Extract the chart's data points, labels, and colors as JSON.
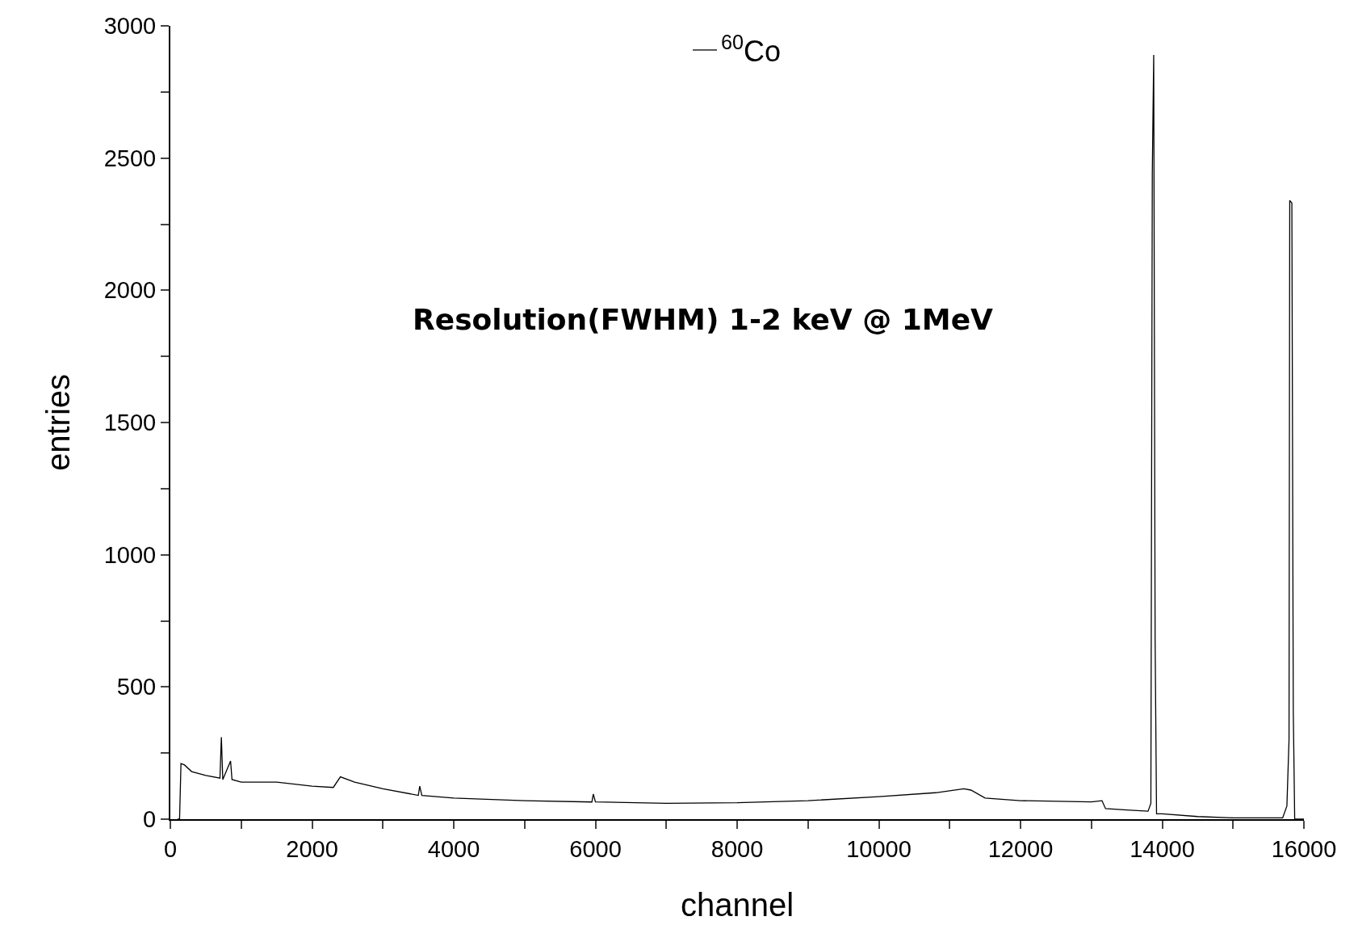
{
  "chart_data": {
    "type": "line",
    "xlabel": "channel",
    "ylabel": "entries",
    "annotations": [
      "Resolution(FWHM) 1-2 keV @ 1MeV"
    ],
    "xlim": [
      0,
      16000
    ],
    "ylim": [
      0,
      3000
    ],
    "xticks": [
      0,
      {
        "value": 1000,
        "label": null
      },
      2000,
      {
        "value": 3000,
        "label": null
      },
      4000,
      {
        "value": 5000,
        "label": null
      },
      6000,
      {
        "value": 7000,
        "label": null
      },
      8000,
      {
        "value": 9000,
        "label": null
      },
      10000,
      {
        "value": 11000,
        "label": null
      },
      12000,
      {
        "value": 13000,
        "label": null
      },
      14000,
      {
        "value": 15000,
        "label": null
      },
      16000
    ],
    "yticks": [
      0,
      {
        "value": 250,
        "label": null
      },
      500,
      {
        "value": 750,
        "label": null
      },
      1000,
      {
        "value": 1250,
        "label": null
      },
      1500,
      {
        "value": 1750,
        "label": null
      },
      2000,
      {
        "value": 2250,
        "label": null
      },
      2500,
      {
        "value": 2750,
        "label": null
      },
      3000
    ],
    "grid": false,
    "legend": "top",
    "marker": "none",
    "line_style": "solid",
    "series": [
      {
        "name": "$^{60}$Co",
        "color": "#000000",
        "x": [
          100,
          130,
          150,
          200,
          300,
          500,
          700,
          720,
          740,
          850,
          870,
          1000,
          1500,
          2000,
          2300,
          2400,
          2600,
          3000,
          3500,
          3520,
          3550,
          4000,
          5000,
          5950,
          5970,
          6000,
          7000,
          8000,
          9000,
          10000,
          10800,
          11200,
          11300,
          11500,
          12000,
          13000,
          13150,
          13200,
          13500,
          13800,
          13840,
          13860,
          13880,
          13900,
          13920,
          14000,
          14500,
          15000,
          15700,
          15760,
          15790,
          15800,
          15830,
          15850,
          15870,
          16000
        ],
        "values": [
          0,
          0,
          210,
          205,
          180,
          165,
          155,
          310,
          150,
          220,
          150,
          140,
          140,
          125,
          120,
          160,
          140,
          115,
          90,
          125,
          90,
          80,
          70,
          65,
          95,
          65,
          60,
          62,
          70,
          85,
          100,
          115,
          110,
          80,
          70,
          65,
          70,
          40,
          35,
          30,
          60,
          2440,
          2890,
          680,
          20,
          20,
          10,
          5,
          5,
          50,
          300,
          2340,
          2330,
          410,
          0,
          0
        ]
      }
    ]
  }
}
